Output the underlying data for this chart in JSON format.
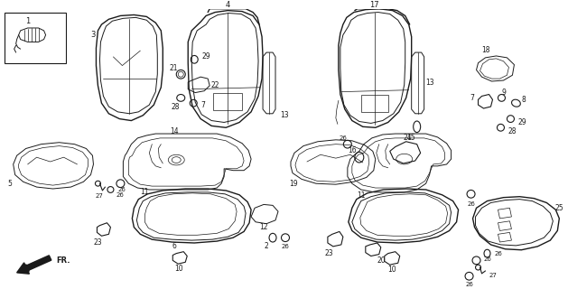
{
  "bg_color": "#ffffff",
  "line_color": "#1a1a1a",
  "fig_width": 6.29,
  "fig_height": 3.2,
  "dpi": 100
}
